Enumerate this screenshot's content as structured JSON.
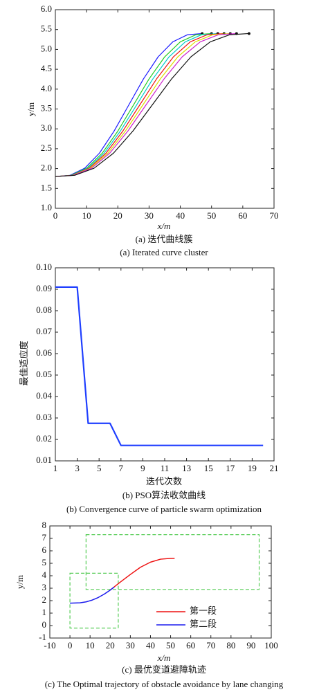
{
  "chart_data": [
    {
      "type": "line",
      "title": "(a) 迭代曲线簇",
      "subtitle": "(a) Iterated curve cluster",
      "x_label": "x/m",
      "y_label": "y/m",
      "xlim": [
        0,
        70
      ],
      "ylim": [
        1.0,
        6.0
      ],
      "xticks": [
        0,
        10,
        20,
        30,
        40,
        50,
        60,
        70
      ],
      "yticks": [
        {
          "value": 1.0,
          "label": "1.0"
        },
        {
          "value": 1.5,
          "label": "1.5"
        },
        {
          "value": 2.0,
          "label": "2.0"
        },
        {
          "value": 2.5,
          "label": "2.5"
        },
        {
          "value": 3.0,
          "label": "3.0"
        },
        {
          "value": 3.5,
          "label": "3.5"
        },
        {
          "value": 4.0,
          "label": "4.0"
        },
        {
          "value": 4.5,
          "label": "4.5"
        },
        {
          "value": 5.0,
          "label": "5.0"
        },
        {
          "value": 5.5,
          "label": "5.5"
        },
        {
          "value": 6.0,
          "label": "6.0"
        }
      ],
      "series": [
        {
          "color": "#1a1aff",
          "x": [
            0,
            4.7,
            9.4,
            14.1,
            18.8,
            23.5,
            28.2,
            32.9,
            37.6,
            42.3,
            47
          ],
          "values": [
            1.8,
            1.831,
            2.009,
            2.387,
            2.943,
            3.6,
            4.257,
            4.813,
            5.191,
            5.369,
            5.4
          ]
        },
        {
          "color": "#22cc22",
          "x": [
            0,
            5,
            10,
            15,
            20,
            25,
            30,
            35,
            40,
            45,
            50
          ],
          "values": [
            1.8,
            1.831,
            2.009,
            2.387,
            2.943,
            3.6,
            4.257,
            4.813,
            5.191,
            5.369,
            5.4
          ]
        },
        {
          "color": "#00cccc",
          "x": [
            0,
            5.2,
            10.4,
            15.6,
            20.8,
            26,
            31.2,
            36.4,
            41.6,
            46.8,
            52
          ],
          "values": [
            1.8,
            1.831,
            2.009,
            2.387,
            2.943,
            3.6,
            4.257,
            4.813,
            5.191,
            5.369,
            5.4
          ]
        },
        {
          "color": "#ee1111",
          "x": [
            0,
            5.4,
            10.8,
            16.2,
            21.6,
            27,
            32.4,
            37.8,
            43.2,
            48.6,
            54
          ],
          "values": [
            1.8,
            1.831,
            2.009,
            2.387,
            2.943,
            3.6,
            4.257,
            4.813,
            5.191,
            5.369,
            5.4
          ]
        },
        {
          "color": "#dddd00",
          "x": [
            0,
            5.6,
            11.2,
            16.8,
            22.4,
            28,
            33.6,
            39.2,
            44.8,
            50.4,
            56
          ],
          "values": [
            1.8,
            1.831,
            2.009,
            2.387,
            2.943,
            3.6,
            4.257,
            4.813,
            5.191,
            5.369,
            5.4
          ]
        },
        {
          "color": "#cc22cc",
          "x": [
            0,
            5.8,
            11.6,
            17.4,
            23.2,
            29,
            34.8,
            40.6,
            46.4,
            52.2,
            58
          ],
          "values": [
            1.8,
            1.831,
            2.009,
            2.387,
            2.943,
            3.6,
            4.257,
            4.813,
            5.191,
            5.369,
            5.4
          ]
        },
        {
          "color": "#111111",
          "x": [
            0,
            6.2,
            12.4,
            18.6,
            24.8,
            31,
            37.2,
            43.4,
            49.6,
            55.8,
            62
          ],
          "values": [
            1.8,
            1.831,
            2.009,
            2.387,
            2.943,
            3.6,
            4.257,
            4.813,
            5.191,
            5.369,
            5.4
          ]
        }
      ]
    },
    {
      "type": "line",
      "title": "(b) PSO算法收敛曲线",
      "subtitle": "(b) Convergence curve of particle swarm optimization",
      "x_label": "迭代次数",
      "y_label": "最佳适应度",
      "xlim": [
        1,
        21
      ],
      "ylim": [
        0.01,
        0.1
      ],
      "xticks": [
        1,
        3,
        5,
        7,
        9,
        11,
        13,
        15,
        17,
        19,
        21
      ],
      "yticks": [
        0.01,
        0.02,
        0.03,
        0.04,
        0.05,
        0.06,
        0.07,
        0.08,
        0.09,
        {
          "value": 0.1,
          "label": "0.10"
        }
      ],
      "x": [
        1,
        2,
        3,
        4,
        5,
        6,
        7,
        8,
        9,
        10,
        11,
        12,
        13,
        14,
        15,
        16,
        17,
        18,
        19,
        20
      ],
      "series": [
        {
          "color": "#1f3fff",
          "values": [
            0.091,
            0.091,
            0.091,
            0.0275,
            0.0275,
            0.0275,
            0.0172,
            0.0172,
            0.0172,
            0.0172,
            0.0172,
            0.0172,
            0.0172,
            0.0172,
            0.0172,
            0.0172,
            0.0172,
            0.0172,
            0.0172,
            0.0172
          ]
        }
      ]
    },
    {
      "type": "line",
      "title": "(c) 最优变道避障轨迹",
      "subtitle": "(c) The Optimal trajectory of obstacle avoidance by lane changing",
      "x_label": "x/m",
      "y_label": "y/m",
      "xlim": [
        -10,
        100
      ],
      "ylim": [
        -1,
        8
      ],
      "xticks": [
        -10,
        0,
        10,
        20,
        30,
        40,
        50,
        60,
        70,
        80,
        90,
        100
      ],
      "yticks": [
        -1,
        0,
        1,
        2,
        3,
        4,
        5,
        6,
        7,
        8
      ],
      "legend": "center",
      "regions": [
        {
          "color": "#55cc55",
          "x": [
            0,
            24
          ],
          "y": [
            -0.2,
            4.2
          ]
        },
        {
          "color": "#55cc55",
          "x": [
            8,
            94
          ],
          "y": [
            2.9,
            7.3
          ]
        }
      ],
      "series": [
        {
          "name": "第一段",
          "color": "#ee1111",
          "x": [
            20,
            25,
            30,
            35,
            40,
            45,
            50,
            52
          ],
          "values": [
            2.85,
            3.49,
            4.1,
            4.68,
            5.09,
            5.33,
            5.397,
            5.4
          ]
        },
        {
          "name": "第二段",
          "color": "#1a1aee",
          "x": [
            0,
            5,
            8,
            11,
            14,
            17,
            20,
            22
          ],
          "values": [
            1.8,
            1.827,
            1.903,
            2.042,
            2.249,
            2.52,
            2.85,
            3.09
          ]
        }
      ]
    }
  ]
}
